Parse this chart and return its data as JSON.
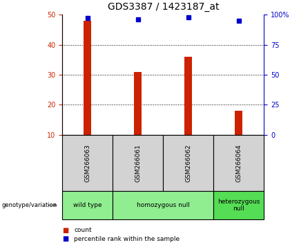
{
  "title": "GDS3387 / 1423187_at",
  "samples": [
    "GSM266063",
    "GSM266061",
    "GSM266062",
    "GSM266064"
  ],
  "bar_values": [
    48,
    31,
    36,
    18
  ],
  "bar_bottom": 10,
  "bar_color": "#cc2200",
  "percentile_values": [
    97,
    96,
    98,
    95
  ],
  "percentile_color": "#0000cc",
  "left_ylim": [
    10,
    50
  ],
  "left_yticks": [
    10,
    20,
    30,
    40,
    50
  ],
  "right_ylim": [
    0,
    100
  ],
  "right_yticks": [
    0,
    25,
    50,
    75,
    100
  ],
  "right_yticklabels": [
    "0",
    "25",
    "50",
    "75",
    "100%"
  ],
  "grid_values": [
    20,
    30,
    40
  ],
  "genotype_groups": [
    {
      "label": "wild type",
      "n_samples": 1,
      "color": "#90ee90"
    },
    {
      "label": "homozygous null",
      "n_samples": 2,
      "color": "#90ee90"
    },
    {
      "label": "heterozygous\nnull",
      "n_samples": 1,
      "color": "#55dd55"
    }
  ],
  "sample_box_color": "#d3d3d3",
  "legend_count_color": "#cc2200",
  "legend_percentile_color": "#0000cc",
  "title_fontsize": 10,
  "tick_fontsize": 7,
  "bar_width": 0.15
}
